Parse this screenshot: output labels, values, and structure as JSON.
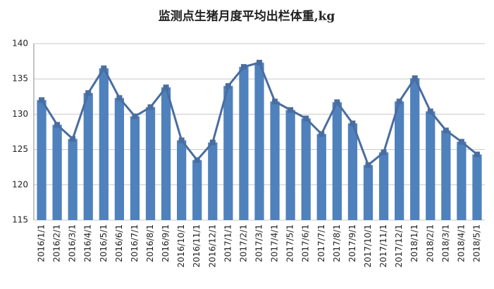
{
  "chart_data": {
    "type": "bar",
    "title": "监测点生猪月度平均出栏体重,kg",
    "categories": [
      "2016/1/1",
      "2016/2/1",
      "2016/3/1",
      "2016/4/1",
      "2016/5/1",
      "2016/6/1",
      "2016/7/1",
      "2016/8/1",
      "2016/9/1",
      "2016/10/1",
      "2016/11/1",
      "2016/12/1",
      "2017/1/1",
      "2017/2/1",
      "2017/3/1",
      "2017/4/1",
      "2017/5/1",
      "2017/6/1",
      "2017/7/1",
      "2017/8/1",
      "2017/9/1",
      "2017/10/1",
      "2017/11/1",
      "2017/12/1",
      "2018/1/1",
      "2018/2/1",
      "2018/3/1",
      "2018/4/1",
      "2018/5/1"
    ],
    "values": [
      132,
      128.5,
      126.5,
      133,
      136.5,
      132.3,
      129.7,
      131,
      133.8,
      126.3,
      123.5,
      126,
      134,
      136.7,
      137.3,
      131.8,
      130.6,
      129.4,
      127.2,
      131.7,
      128.7,
      122.8,
      124.6,
      131.8,
      135.1,
      130.4,
      127.7,
      126.1,
      124.3
    ],
    "color": "#4f81bd",
    "line_overlay": true,
    "line_color": "#4a6d9f",
    "ylim": [
      115,
      140
    ],
    "yticks": [
      115,
      120,
      125,
      130,
      135,
      140
    ],
    "grid": true
  }
}
